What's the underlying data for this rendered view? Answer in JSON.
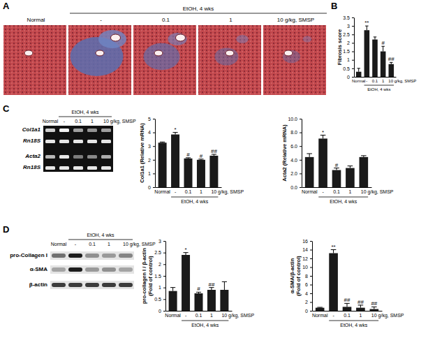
{
  "chart_data": [
    {
      "type": "bar",
      "ylabel": [
        "Fibrosis score"
      ],
      "categories": [
        "Normal",
        "-",
        "0.1",
        "1",
        "10 g/kg, SMSP"
      ],
      "values": [
        0.3,
        2.75,
        2.2,
        1.5,
        0.75
      ],
      "errors": [
        0.2,
        0.25,
        0.15,
        0.3,
        0.1
      ],
      "sig_labels": [
        null,
        "**",
        null,
        "#",
        "##"
      ],
      "group_label": "EtOH, 4 wks",
      "color": "#1a1a1a",
      "ylim": [
        0,
        3.5
      ],
      "yticks": [
        0,
        0.5,
        1,
        1.5,
        2,
        2.5,
        3,
        3.5
      ]
    },
    {
      "type": "bar",
      "ylabel": [
        "Col1a1 (Relative mRNA)"
      ],
      "categories": [
        "Normal",
        "-",
        "0.1",
        "1",
        "10 g/kg, SMSP"
      ],
      "values": [
        3.25,
        3.85,
        2.1,
        2.0,
        2.3
      ],
      "errors": [
        0.05,
        0.15,
        0.05,
        0.05,
        0.1
      ],
      "sig_labels": [
        null,
        "*",
        "#",
        "#",
        "##"
      ],
      "group_label": "EtOH, 4 wks",
      "color": "#1a1a1a",
      "ylim": [
        0,
        5
      ],
      "yticks": [
        0,
        1,
        2,
        3,
        4,
        5
      ]
    },
    {
      "type": "bar",
      "ylabel": [
        "Acta2 (Relative mRNA)"
      ],
      "categories": [
        "Normal",
        "-",
        "0.1",
        "1",
        "10 g/kg, SMSP"
      ],
      "values": [
        4.4,
        7.1,
        2.5,
        2.8,
        4.4
      ],
      "errors": [
        0.5,
        0.5,
        0.3,
        0.3,
        0.2
      ],
      "sig_labels": [
        null,
        "*",
        "#",
        null,
        null
      ],
      "group_label": "EtOH, 4 wks",
      "color": "#1a1a1a",
      "ylim": [
        0,
        10
      ],
      "yticks": [
        {
          "value": 0,
          "label": "0.0"
        },
        {
          "value": 2,
          "label": "2.0"
        },
        {
          "value": 4,
          "label": "4.0"
        },
        {
          "value": 6,
          "label": "6.0"
        },
        {
          "value": 8,
          "label": "8.0"
        },
        {
          "value": 10,
          "label": "10.0"
        }
      ]
    },
    {
      "type": "bar",
      "ylabel": [
        "pro-collagen I / β-actin",
        "(Fold of control)"
      ],
      "categories": [
        "Normal",
        "-",
        "0.1",
        "1",
        "10 g/kg, SMSP"
      ],
      "values": [
        0.85,
        2.4,
        0.75,
        0.9,
        0.9
      ],
      "errors": [
        0.15,
        0.1,
        0.05,
        0.1,
        0.35
      ],
      "sig_labels": [
        null,
        "*",
        "#",
        "##",
        null
      ],
      "group_label": "EtOH, 4 wks",
      "color": "#1a1a1a",
      "ylim": [
        0,
        3
      ],
      "yticks": [
        0,
        0.5,
        1,
        1.5,
        2,
        2.5,
        3
      ]
    },
    {
      "type": "bar",
      "ylabel": [
        "α-SMA/β-actin",
        "(Fold of control)"
      ],
      "categories": [
        "Normal",
        "-",
        "0.1",
        "1",
        "10 g/kg, SMSP"
      ],
      "values": [
        0.7,
        13.2,
        0.9,
        0.7,
        0.4
      ],
      "errors": [
        0.1,
        0.8,
        0.8,
        0.6,
        0.5
      ],
      "sig_labels": [
        null,
        "**",
        "##",
        "##",
        "##"
      ],
      "group_label": "EtOH, 4 wks",
      "color": "#1a1a1a",
      "ylim": [
        0,
        16
      ],
      "yticks": [
        0,
        2,
        4,
        6,
        8,
        10,
        12,
        14,
        16
      ]
    }
  ],
  "figure": {
    "panel_labels": [
      "A",
      "B",
      "C",
      "D"
    ],
    "histology": {
      "group_label": "EtOH, 4 wks",
      "columns": [
        "Normal",
        "-",
        "0.1",
        "1",
        "10 g/kg, SMSP"
      ]
    },
    "gel": {
      "group_label": "EtOH, 4 wks",
      "lanes": [
        "Normal",
        "-",
        "0.1",
        "1",
        "10 g/kg, SMSP"
      ],
      "rows": [
        "Col1a1",
        "Rn18S",
        "Acta2",
        "Rn18S"
      ]
    },
    "blot": {
      "group_label": "EtOH, 4 wks",
      "lanes": [
        "Normal",
        "-",
        "0.1",
        "1",
        "10 g/kg, SMSP"
      ],
      "rows": [
        "pro-Collagen I",
        "α-SMA",
        "β-actin"
      ]
    }
  }
}
